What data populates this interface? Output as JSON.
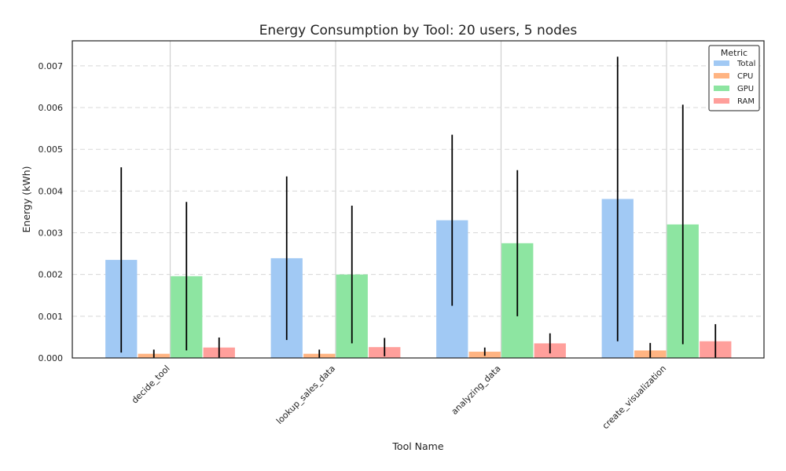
{
  "chart_data": {
    "type": "bar",
    "title": "Energy Consumption by Tool: 20 users, 5 nodes",
    "xlabel": "Tool Name",
    "ylabel": "Energy (kWh)",
    "categories": [
      "decide_tool",
      "lookup_sales_data",
      "analyzing_data",
      "create_visualization"
    ],
    "ylim": [
      0,
      0.0076
    ],
    "yticks": [
      "0.000",
      "0.001",
      "0.002",
      "0.003",
      "0.004",
      "0.005",
      "0.006",
      "0.007"
    ],
    "grid": true,
    "legend": {
      "title": "Metric",
      "placement": "top-right"
    },
    "series": [
      {
        "name": "Total",
        "color": "#a1c9f4",
        "values": [
          0.00235,
          0.00239,
          0.0033,
          0.00381
        ],
        "err": [
          0.00222,
          0.00196,
          0.00205,
          0.00341
        ]
      },
      {
        "name": "CPU",
        "color": "#ffb482",
        "values": [
          0.0001,
          0.0001,
          0.00015,
          0.00018
        ],
        "err": [
          0.0001,
          0.0001,
          0.0001,
          0.00018
        ]
      },
      {
        "name": "GPU",
        "color": "#8de5a1",
        "values": [
          0.00196,
          0.002,
          0.00275,
          0.0032
        ],
        "err": [
          0.00178,
          0.00165,
          0.00175,
          0.00287
        ]
      },
      {
        "name": "RAM",
        "color": "#ff9f9b",
        "values": [
          0.00025,
          0.00026,
          0.00035,
          0.0004
        ],
        "err": [
          0.00024,
          0.00022,
          0.00024,
          0.00041
        ]
      }
    ]
  }
}
